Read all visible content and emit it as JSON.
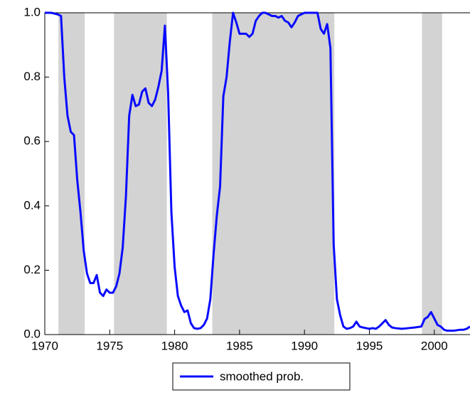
{
  "chart_data": {
    "type": "line",
    "series": [
      {
        "name": "smoothed prob.",
        "color": "#0a0aff",
        "x": [
          1970.0,
          1970.5,
          1971.0,
          1971.25,
          1971.5,
          1971.75,
          1972.0,
          1972.25,
          1972.5,
          1972.75,
          1973.0,
          1973.25,
          1973.5,
          1973.75,
          1974.0,
          1974.25,
          1974.5,
          1974.75,
          1975.0,
          1975.25,
          1975.5,
          1975.75,
          1976.0,
          1976.25,
          1976.5,
          1976.75,
          1977.0,
          1977.25,
          1977.5,
          1977.75,
          1978.0,
          1978.25,
          1978.5,
          1978.75,
          1979.0,
          1979.25,
          1979.5,
          1979.75,
          1980.0,
          1980.25,
          1980.5,
          1980.75,
          1981.0,
          1981.25,
          1981.5,
          1981.75,
          1982.0,
          1982.25,
          1982.5,
          1982.75,
          1983.0,
          1983.25,
          1983.5,
          1983.75,
          1984.0,
          1984.25,
          1984.5,
          1984.75,
          1985.0,
          1985.25,
          1985.5,
          1985.75,
          1986.0,
          1986.25,
          1986.5,
          1986.75,
          1987.0,
          1987.25,
          1987.5,
          1987.75,
          1988.0,
          1988.25,
          1988.5,
          1988.75,
          1989.0,
          1989.25,
          1989.5,
          1989.75,
          1990.0,
          1990.5,
          1991.0,
          1991.25,
          1991.5,
          1991.75,
          1992.0,
          1992.25,
          1992.5,
          1992.75,
          1993.0,
          1993.25,
          1993.5,
          1993.75,
          1994.0,
          1994.25,
          1994.5,
          1994.75,
          1995.0,
          1995.25,
          1995.5,
          1995.75,
          1996.0,
          1996.25,
          1996.5,
          1996.75,
          1997.0,
          1997.5,
          1998.0,
          1998.5,
          1999.0,
          1999.25,
          1999.5,
          1999.75,
          2000.0,
          2000.25,
          2000.5,
          2000.75,
          2001.0,
          2001.5,
          2002.0,
          2002.25,
          2002.5,
          2002.75
        ],
        "values": [
          1.0,
          1.0,
          0.995,
          0.99,
          0.8,
          0.68,
          0.63,
          0.62,
          0.48,
          0.38,
          0.26,
          0.19,
          0.16,
          0.16,
          0.185,
          0.13,
          0.12,
          0.14,
          0.13,
          0.13,
          0.15,
          0.19,
          0.27,
          0.43,
          0.68,
          0.745,
          0.71,
          0.715,
          0.755,
          0.765,
          0.72,
          0.71,
          0.73,
          0.77,
          0.82,
          0.96,
          0.75,
          0.38,
          0.21,
          0.12,
          0.09,
          0.07,
          0.075,
          0.035,
          0.02,
          0.018,
          0.02,
          0.03,
          0.05,
          0.11,
          0.25,
          0.37,
          0.46,
          0.74,
          0.8,
          0.91,
          1.0,
          0.97,
          0.935,
          0.935,
          0.935,
          0.925,
          0.935,
          0.975,
          0.99,
          1.0,
          1.0,
          0.995,
          0.99,
          0.99,
          0.985,
          0.99,
          0.975,
          0.97,
          0.955,
          0.97,
          0.99,
          0.995,
          1.0,
          1.0,
          1.0,
          0.95,
          0.935,
          0.965,
          0.89,
          0.28,
          0.11,
          0.06,
          0.025,
          0.018,
          0.02,
          0.025,
          0.04,
          0.025,
          0.022,
          0.02,
          0.018,
          0.02,
          0.018,
          0.025,
          0.035,
          0.045,
          0.03,
          0.022,
          0.02,
          0.018,
          0.02,
          0.022,
          0.025,
          0.048,
          0.055,
          0.07,
          0.05,
          0.03,
          0.025,
          0.015,
          0.012,
          0.012,
          0.015,
          0.015,
          0.018,
          0.025
        ]
      }
    ],
    "shaded_regions": [
      [
        1971.05,
        1973.07
      ],
      [
        1975.33,
        1979.4
      ],
      [
        1982.9,
        1992.3
      ],
      [
        1999.05,
        2000.6
      ]
    ],
    "shade_color": "#d3d3d3",
    "xlim": [
      1970,
      2002.75
    ],
    "xticks": [
      1970,
      1975,
      1980,
      1985,
      1990,
      1995,
      2000
    ],
    "ylim": [
      0,
      1
    ],
    "yticks": [
      {
        "value": 0,
        "label": "0.0"
      },
      0.2,
      0.4,
      0.6,
      0.8,
      {
        "value": 1,
        "label": "1.0"
      }
    ],
    "legend": "bottom"
  }
}
